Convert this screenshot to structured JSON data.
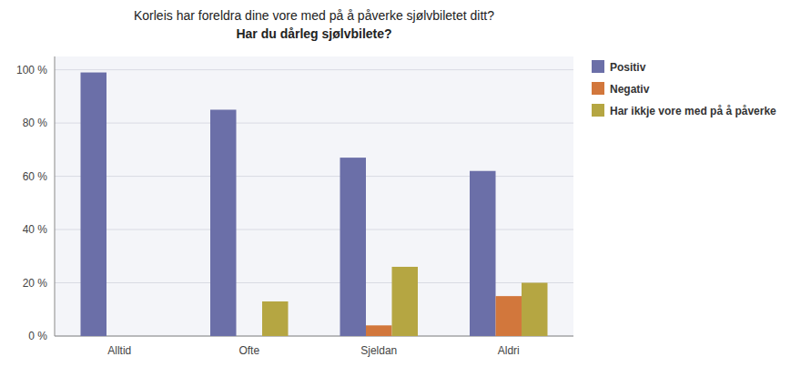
{
  "chart_data": {
    "type": "bar",
    "title": "Korleis har foreldra dine vore med på å påverke sjølvbiletet ditt?",
    "subtitle": "Har du dårleg sjølvbilete?",
    "categories": [
      "Alltid",
      "Ofte",
      "Sjeldan",
      "Aldri"
    ],
    "series": [
      {
        "name": "Positiv",
        "color": "#6B6FA8",
        "values": [
          99,
          85,
          67,
          62
        ]
      },
      {
        "name": "Negativ",
        "color": "#D2773C",
        "values": [
          0,
          0,
          4,
          15
        ]
      },
      {
        "name": "Har ikkje vore med på å påverke",
        "color": "#B5A642",
        "values": [
          0,
          13,
          26,
          20
        ]
      }
    ],
    "ylim": [
      0,
      105
    ],
    "yticks": [
      {
        "value": 0,
        "label": "0 %"
      },
      {
        "value": 20,
        "label": "20 %"
      },
      {
        "value": 40,
        "label": "40 %"
      },
      {
        "value": 60,
        "label": "60 %"
      },
      {
        "value": 80,
        "label": "80 %"
      },
      {
        "value": 100,
        "label": "100 %"
      }
    ],
    "grid": true,
    "legend": "right"
  }
}
